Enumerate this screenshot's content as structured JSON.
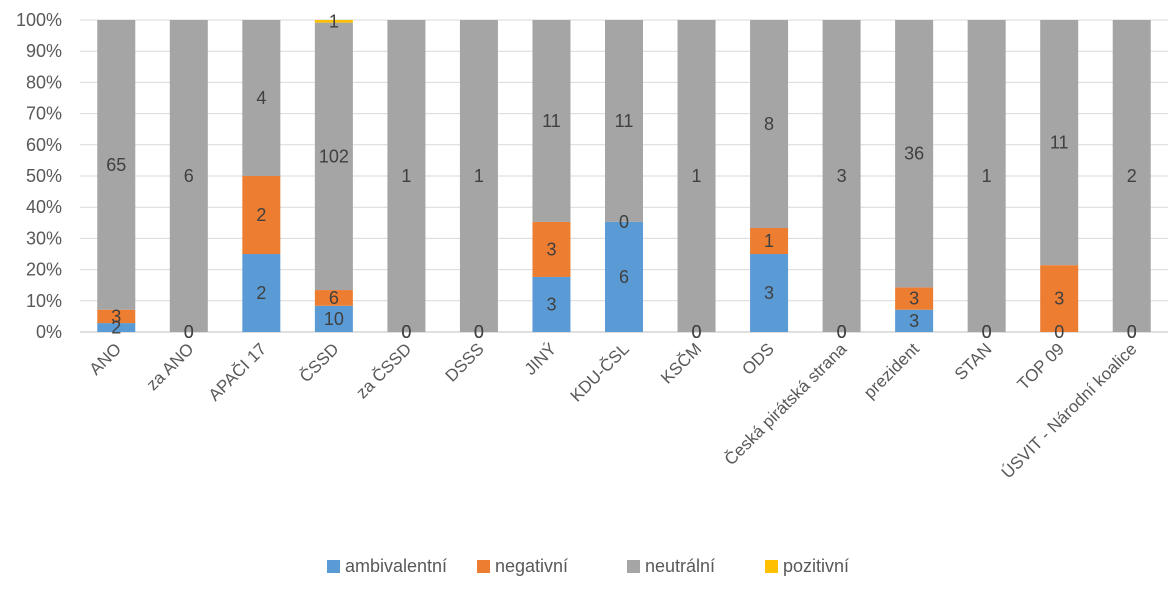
{
  "chart_data": {
    "type": "bar",
    "stacked": "percent",
    "categories": [
      "ANO",
      "za ANO",
      "APAČI 17",
      "ČSSD",
      "za ČSSD",
      "DSSS",
      "JINÝ",
      "KDU-ČSL",
      "KSČM",
      "ODS",
      "Česká pirátská strana",
      "prezident",
      "STAN",
      "TOP 09",
      "ÚSVIT - Národní koalice"
    ],
    "series": [
      {
        "name": "ambivalentní",
        "color": "#5B9BD5",
        "values": [
          2,
          0,
          2,
          10,
          0,
          0,
          3,
          6,
          0,
          3,
          0,
          3,
          0,
          0,
          0
        ]
      },
      {
        "name": "negativní",
        "color": "#ED7D31",
        "values": [
          3,
          0,
          2,
          6,
          0,
          0,
          3,
          0,
          0,
          1,
          0,
          3,
          0,
          3,
          0
        ]
      },
      {
        "name": "neutrální",
        "color": "#A5A5A5",
        "values": [
          65,
          6,
          4,
          102,
          1,
          1,
          11,
          11,
          1,
          8,
          3,
          36,
          1,
          11,
          2
        ]
      },
      {
        "name": "pozitivní",
        "color": "#FFC000",
        "values": [
          0,
          0,
          0,
          1,
          0,
          0,
          0,
          0,
          0,
          0,
          0,
          0,
          0,
          0,
          0
        ]
      }
    ],
    "y_ticks": [
      "0%",
      "10%",
      "20%",
      "30%",
      "40%",
      "50%",
      "60%",
      "70%",
      "80%",
      "90%",
      "100%"
    ],
    "ylim": [
      0,
      100
    ],
    "grid": true,
    "legend": "bottom"
  }
}
